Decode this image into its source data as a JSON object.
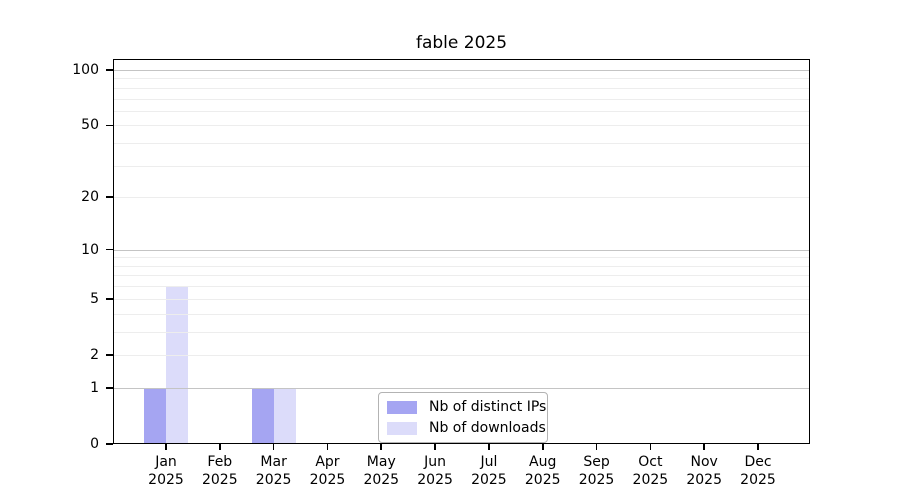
{
  "title": "fable 2025",
  "chart_data": {
    "type": "bar",
    "title": "fable 2025",
    "categories": [
      "Jan 2025",
      "Feb 2025",
      "Mar 2025",
      "Apr 2025",
      "May 2025",
      "Jun 2025",
      "Jul 2025",
      "Aug 2025",
      "Sep 2025",
      "Oct 2025",
      "Nov 2025",
      "Dec 2025"
    ],
    "series": [
      {
        "name": "Nb of distinct IPs",
        "color": "#a5a5f2",
        "values": [
          1,
          0,
          1,
          0,
          0,
          0,
          0,
          0,
          0,
          0,
          0,
          0
        ]
      },
      {
        "name": "Nb of downloads",
        "color": "#dcdcfa",
        "values": [
          6,
          0,
          1,
          0,
          0,
          0,
          0,
          0,
          0,
          0,
          0,
          0
        ]
      }
    ],
    "xlabel": "",
    "ylabel": "",
    "yscale": "log1p",
    "ylim": [
      0,
      115
    ],
    "y_tick_labels": [
      0,
      1,
      2,
      5,
      10,
      20,
      50,
      100
    ],
    "y_major_gridlines": [
      1,
      10,
      100
    ],
    "y_minor_gridlines": [
      2,
      3,
      4,
      5,
      6,
      7,
      8,
      9,
      20,
      30,
      40,
      50,
      60,
      70,
      80,
      90
    ],
    "grid": "horizontal",
    "legend_position": "lower center",
    "bar_group": "side-by-side"
  }
}
